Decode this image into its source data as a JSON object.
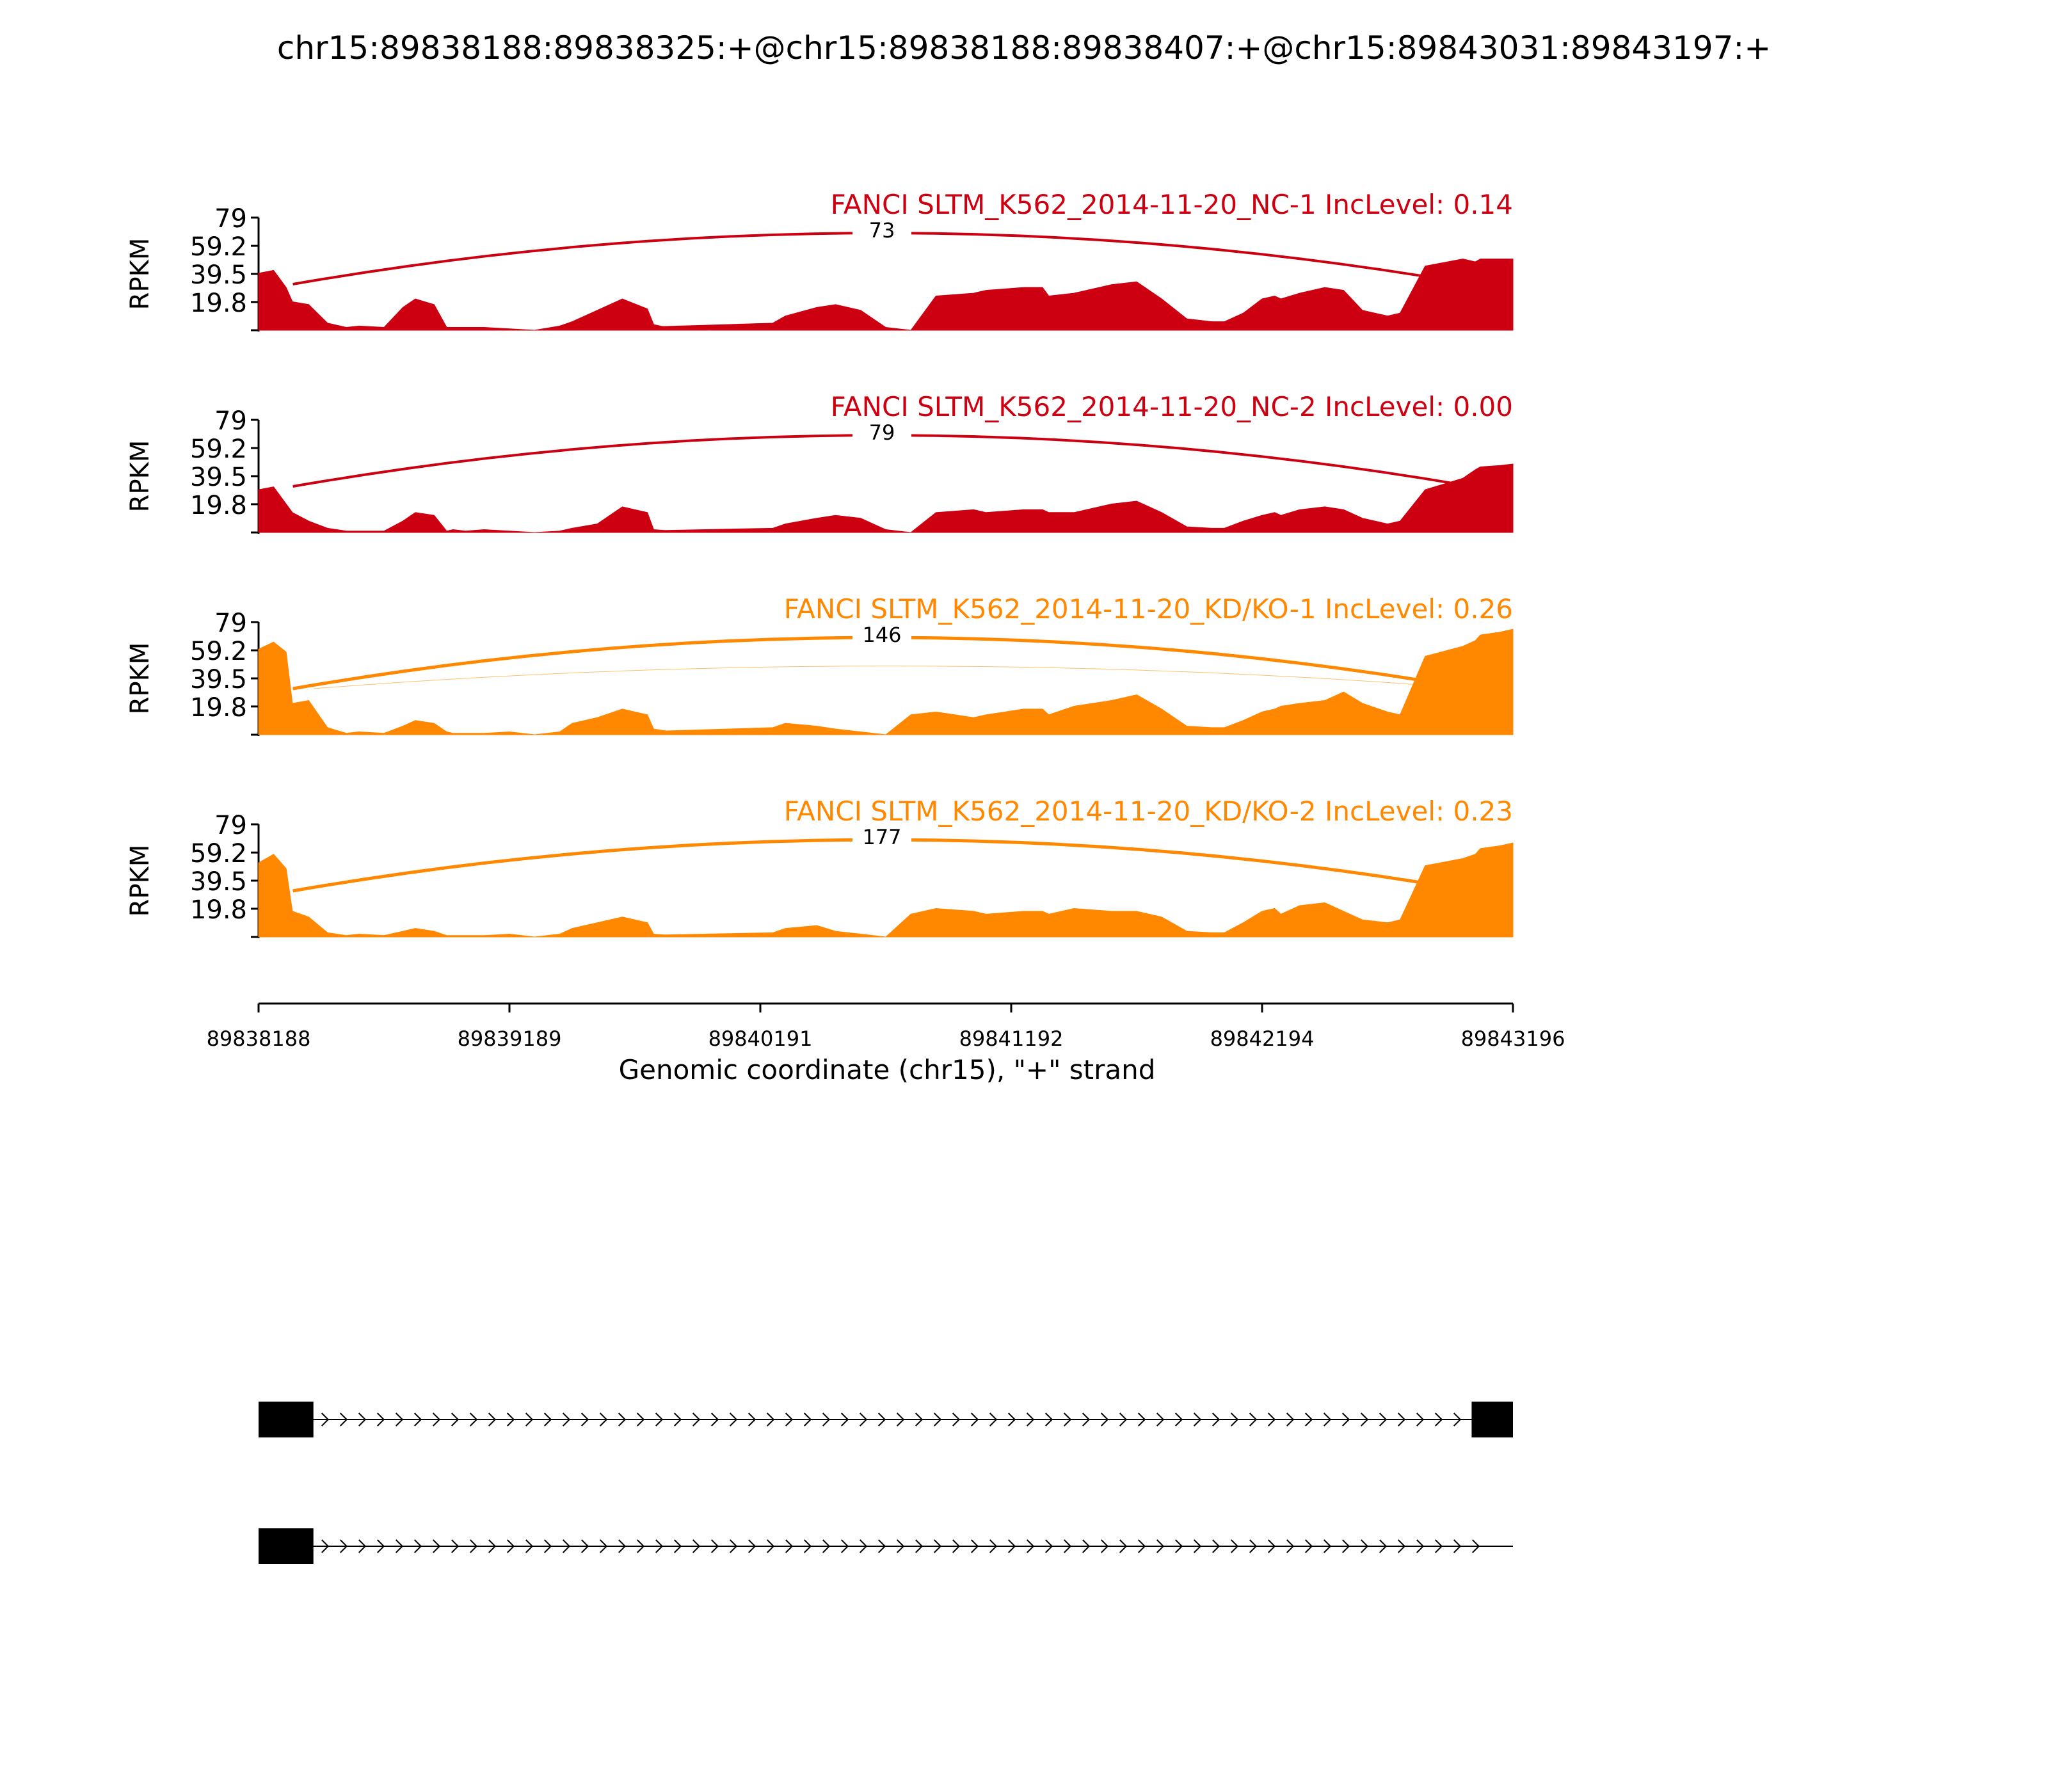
{
  "chart_data": {
    "type": "area",
    "title": "chr15:89838188:89838325:+@chr15:89838188:89838407:+@chr15:89843031:89843197:+",
    "xlabel": "Genomic coordinate (chr15), \"+\" strand",
    "ylabel": "RPKM",
    "xlim": [
      89838188,
      89843196
    ],
    "ylim": [
      0,
      79
    ],
    "x_ticks": [
      "89838188",
      "89839189",
      "89840191",
      "89841192",
      "89842194",
      "89843196"
    ],
    "y_ticks": [
      "79",
      "59.2",
      "39.5",
      "19.8"
    ],
    "grid": false,
    "colors": {
      "NC": "#cc0011",
      "KDKO": "#ff8800",
      "text": "#000000"
    },
    "coverage_x": [
      0,
      0.012,
      0.022,
      0.027,
      0.04,
      0.055,
      0.07,
      0.08,
      0.1,
      0.115,
      0.125,
      0.14,
      0.15,
      0.155,
      0.165,
      0.18,
      0.2,
      0.22,
      0.24,
      0.25,
      0.27,
      0.29,
      0.31,
      0.315,
      0.33,
      0.36,
      0.38,
      0.3,
      0.41,
      0.42,
      0.445,
      0.46,
      0.48,
      0.5,
      0.52,
      0.54,
      0.57,
      0.58,
      0.61,
      0.625,
      0.63,
      0.65,
      0.68,
      0.7,
      0.72,
      0.74,
      0.76,
      0.77,
      0.785,
      0.8,
      0.81,
      0.815,
      0.83,
      0.85,
      0.865,
      0.88,
      0.9,
      0.91,
      0.93,
      0.96,
      0.97,
      0.974,
      0.99,
      1.0
    ],
    "series": [
      {
        "name": "FANCI SLTM_K562_2014-11-20_NC-1 IncLevel: 0.14",
        "group": "NC",
        "values": [
          40,
          42,
          30,
          20,
          18,
          5,
          2,
          3,
          2,
          16,
          22,
          18,
          2,
          2,
          2,
          2,
          1,
          0,
          3,
          6,
          14,
          22,
          15,
          4,
          1,
          0,
          0,
          2,
          5,
          10,
          16,
          18,
          14,
          2,
          0,
          24,
          26,
          28,
          30,
          30,
          24,
          26,
          32,
          34,
          22,
          8,
          6,
          6,
          12,
          22,
          24,
          22,
          26,
          30,
          28,
          14,
          10,
          12,
          45,
          50,
          48,
          50,
          50,
          50
        ],
        "junctions": [
          {
            "count": "73",
            "from": 89838325,
            "to": 89843031,
            "weight": 4
          }
        ]
      },
      {
        "name": "FANCI SLTM_K562_2014-11-20_NC-2 IncLevel: 0.00",
        "group": "NC",
        "values": [
          30,
          32,
          20,
          14,
          8,
          3,
          1,
          1,
          1,
          8,
          14,
          12,
          1,
          2,
          1,
          2,
          1,
          0,
          1,
          3,
          6,
          18,
          14,
          2,
          1,
          0,
          0,
          1,
          3,
          6,
          10,
          12,
          10,
          2,
          0,
          14,
          16,
          14,
          16,
          16,
          14,
          14,
          20,
          22,
          14,
          4,
          3,
          3,
          8,
          12,
          14,
          12,
          16,
          18,
          16,
          10,
          6,
          8,
          30,
          38,
          44,
          46,
          47,
          48
        ],
        "junctions": [
          {
            "count": "79",
            "from": 89838325,
            "to": 89843031,
            "weight": 4
          }
        ]
      },
      {
        "name": "FANCI SLTM_K562_2014-11-20_KD/KO-1 IncLevel: 0.26",
        "group": "KDKO",
        "values": [
          60,
          65,
          58,
          22,
          24,
          5,
          1,
          2,
          1,
          6,
          10,
          8,
          2,
          1,
          1,
          1,
          2,
          0,
          2,
          8,
          12,
          18,
          14,
          4,
          2,
          1,
          0,
          2,
          5,
          8,
          6,
          4,
          2,
          0,
          14,
          16,
          12,
          14,
          18,
          18,
          14,
          20,
          24,
          28,
          18,
          6,
          5,
          5,
          10,
          16,
          18,
          20,
          22,
          24,
          30,
          22,
          16,
          14,
          55,
          62,
          66,
          70,
          72,
          74
        ],
        "junctions": [
          {
            "count": "146",
            "from": 89838325,
            "to": 89843031,
            "weight": 5
          },
          {
            "count": "",
            "from": 89838407,
            "to": 89843031,
            "weight": 1
          }
        ]
      },
      {
        "name": "FANCI SLTM_K562_2014-11-20_KD/KO-2 IncLevel: 0.23",
        "group": "KDKO",
        "values": [
          52,
          58,
          48,
          18,
          14,
          3,
          1,
          2,
          1,
          4,
          6,
          4,
          1,
          1,
          1,
          1,
          2,
          0,
          2,
          6,
          10,
          14,
          10,
          2,
          1,
          0,
          0,
          1,
          3,
          6,
          8,
          4,
          2,
          0,
          16,
          20,
          18,
          16,
          18,
          18,
          16,
          20,
          18,
          18,
          14,
          4,
          3,
          3,
          10,
          18,
          20,
          16,
          22,
          24,
          18,
          12,
          10,
          12,
          50,
          55,
          58,
          62,
          64,
          66
        ],
        "junctions": [
          {
            "count": "177",
            "from": 89838325,
            "to": 89843031,
            "weight": 5
          }
        ]
      }
    ],
    "gene_models": [
      {
        "exons": [
          [
            89838188,
            89838407
          ],
          [
            89843031,
            89843196
          ]
        ]
      },
      {
        "exons": [
          [
            89838188,
            89838407
          ]
        ]
      }
    ]
  }
}
